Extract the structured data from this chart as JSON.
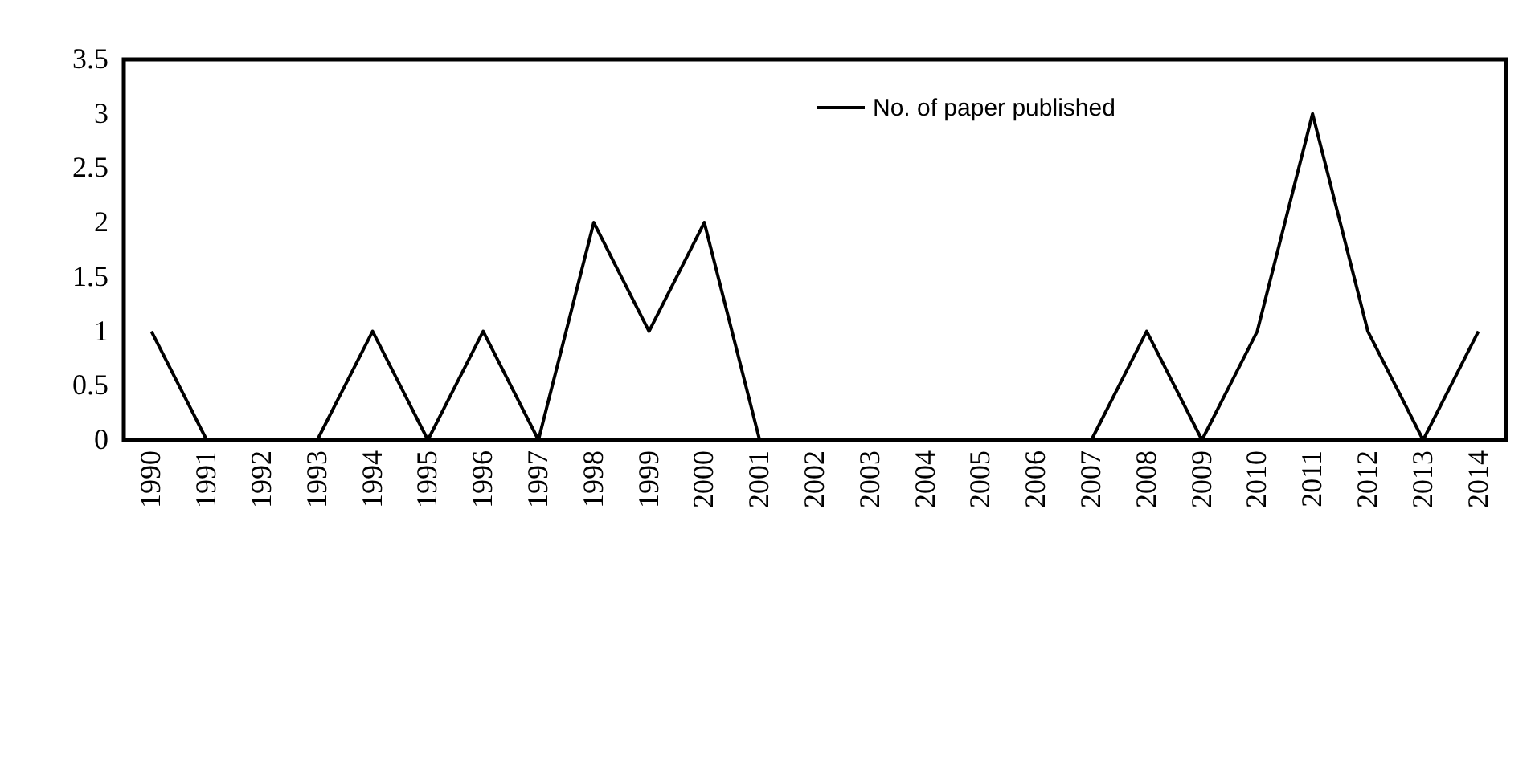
{
  "chart_data": {
    "type": "line",
    "categories": [
      "1990",
      "1991",
      "1992",
      "1993",
      "1994",
      "1995",
      "1996",
      "1997",
      "1998",
      "1999",
      "2000",
      "2001",
      "2002",
      "2003",
      "2004",
      "2005",
      "2006",
      "2007",
      "2008",
      "2009",
      "2010",
      "2011",
      "2012",
      "2013",
      "2014"
    ],
    "series": [
      {
        "name": "No. of paper published",
        "color": "#000000",
        "values": [
          1,
          0,
          0,
          0,
          1,
          0,
          1,
          0,
          2,
          1,
          2,
          0,
          0,
          0,
          0,
          0,
          0,
          0,
          1,
          0,
          1,
          3,
          1,
          0,
          1
        ]
      }
    ],
    "ylim": [
      0,
      3.5
    ],
    "yticks": [
      0,
      0.5,
      1,
      1.5,
      2,
      2.5,
      3,
      3.5
    ],
    "legend": "top right",
    "grid": false,
    "marker": "none",
    "line_style": "solid"
  }
}
